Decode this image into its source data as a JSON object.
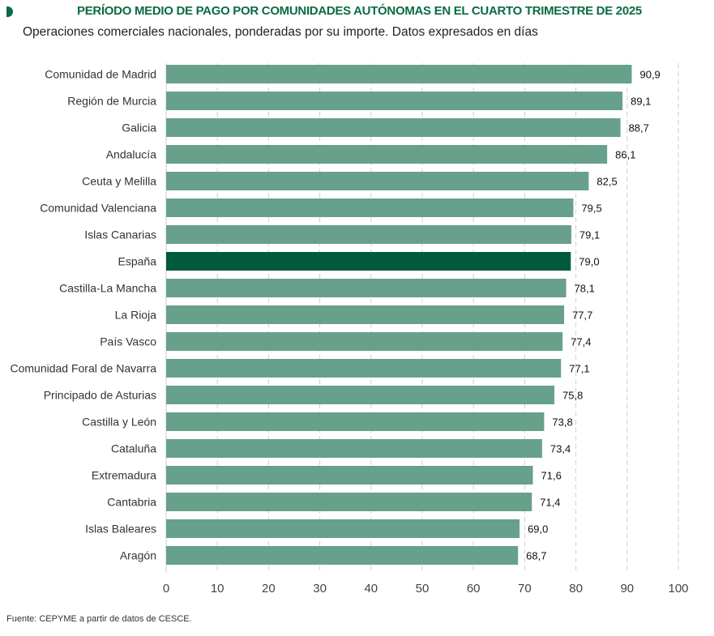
{
  "title": "PERÍODO MEDIO DE PAGO POR COMUNIDADES AUTÓNOMAS EN EL CUARTO TRIMESTRE DE 2025",
  "subtitle": "Operaciones comerciales nacionales, ponderadas por su importe. Datos expresados en días",
  "source": "Fuente: CEPYME a partir de datos de CESCE.",
  "colors": {
    "bar": "#67a08b",
    "highlight": "#005a3b",
    "title": "#0b6b43",
    "grid": "#cfcfcf"
  },
  "chart_data": {
    "type": "bar",
    "orientation": "horizontal",
    "title": "PERÍODO MEDIO DE PAGO POR COMUNIDADES AUTÓNOMAS EN EL CUARTO TRIMESTRE DE 2025",
    "subtitle": "Operaciones comerciales nacionales, ponderadas por su importe. Datos expresados en días",
    "categories": [
      "Comunidad de Madrid",
      "Región de Murcia",
      "Galicia",
      "Andalucía",
      "Ceuta y Melilla",
      "Comunidad Valenciana",
      "Islas Canarias",
      "España",
      "Castilla-La Mancha",
      "La Rioja",
      "País Vasco",
      "Comunidad Foral de Navarra",
      "Principado de Asturias",
      "Castilla y León",
      "Cataluña",
      "Extremadura",
      "Cantabria",
      "Islas Baleares",
      "Aragón"
    ],
    "values": [
      90.9,
      89.1,
      88.7,
      86.1,
      82.5,
      79.5,
      79.1,
      79.0,
      78.1,
      77.7,
      77.4,
      77.1,
      75.8,
      73.8,
      73.4,
      71.6,
      71.4,
      69.0,
      68.7
    ],
    "value_labels": [
      "90,9",
      "89,1",
      "88,7",
      "86,1",
      "82,5",
      "79,5",
      "79,1",
      "79,0",
      "78,1",
      "77,7",
      "77,4",
      "77,1",
      "75,8",
      "73,8",
      "73,4",
      "71,6",
      "71,4",
      "69,0",
      "68,7"
    ],
    "highlight": "España",
    "xlim": [
      0,
      100
    ],
    "xticks": [
      0,
      10,
      20,
      30,
      40,
      50,
      60,
      70,
      80,
      90,
      100
    ],
    "grid": "vertical dashed"
  }
}
